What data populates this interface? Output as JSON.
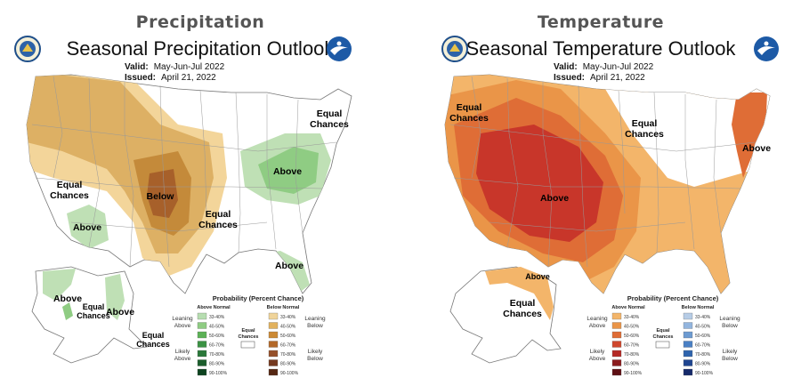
{
  "panels": [
    {
      "header": "Precipitation",
      "title": "Seasonal Precipitation Outlook",
      "valid_label": "Valid:",
      "valid_value": "May-Jun-Jul 2022",
      "issued_label": "Issued:",
      "issued_value": "April 21, 2022",
      "labels": {
        "below": "Below",
        "above_sw": "Above",
        "above_ne": "Above",
        "above_fl": "Above",
        "above_ak1": "Above",
        "above_ak2": "Above",
        "ec_ne_1": "Equal",
        "ec_ne_2": "Chances",
        "ec_w_1": "Equal",
        "ec_w_2": "Chances",
        "ec_s_1": "Equal",
        "ec_s_2": "Chances",
        "ec_ak_1": "Equal",
        "ec_ak_2": "Chances",
        "ec_ak2_1": "Equal",
        "ec_ak2_2": "Chances"
      },
      "legend": {
        "title": "Probability (Percent Chance)",
        "above_header": "Above Normal",
        "below_header": "Below Normal",
        "leaning_above": [
          "Leaning",
          "Above"
        ],
        "likely_above": [
          "Likely",
          "Above"
        ],
        "leaning_below": [
          "Leaning",
          "Below"
        ],
        "likely_below": [
          "Likely",
          "Below"
        ],
        "equal_chances": [
          "Equal",
          "Chances"
        ],
        "ranges": [
          "33-40%",
          "40-50%",
          "50-60%",
          "60-70%",
          "70-80%",
          "80-90%",
          "90-100%"
        ],
        "above_colors": [
          "#b6ddb0",
          "#8fcc83",
          "#5cb156",
          "#3b9244",
          "#2a7839",
          "#1c5e2c",
          "#0e4320"
        ],
        "below_colors": [
          "#f0d49a",
          "#e2b25e",
          "#cc8a35",
          "#b3692a",
          "#95502a",
          "#74391f",
          "#552713"
        ]
      }
    },
    {
      "header": "Temperature",
      "title": "Seasonal Temperature Outlook",
      "valid_label": "Valid:",
      "valid_value": "May-Jun-Jul 2022",
      "issued_label": "Issued:",
      "issued_value": "April 21, 2022",
      "labels": {
        "above_center": "Above",
        "above_ne": "Above",
        "above_ak": "Above",
        "ec_w_1": "Equal",
        "ec_w_2": "Chances",
        "ec_n_1": "Equal",
        "ec_n_2": "Chances",
        "ec_ak_1": "Equal",
        "ec_ak_2": "Chances"
      },
      "legend": {
        "title": "Probability (Percent Chance)",
        "above_header": "Above Normal",
        "below_header": "Below Normal",
        "leaning_above": [
          "Leaning",
          "Above"
        ],
        "likely_above": [
          "Likely",
          "Above"
        ],
        "leaning_below": [
          "Leaning",
          "Below"
        ],
        "likely_below": [
          "Likely",
          "Below"
        ],
        "equal_chances": [
          "Equal",
          "Chances"
        ],
        "ranges": [
          "33-40%",
          "40-50%",
          "50-60%",
          "60-70%",
          "70-80%",
          "80-90%",
          "90-100%"
        ],
        "above_colors": [
          "#f3b56a",
          "#ea9548",
          "#df6d36",
          "#cf472d",
          "#b52a26",
          "#8b1c1e",
          "#5e1015"
        ],
        "below_colors": [
          "#b6cce6",
          "#93b5de",
          "#6d9bd1",
          "#4a80c4",
          "#2e64ad",
          "#1f4590",
          "#162a6b"
        ]
      }
    }
  ],
  "colors": {
    "precip_below1": "#f3d59a",
    "precip_below2": "#ddb064",
    "precip_below3": "#c48a3a",
    "precip_below4": "#a7602a",
    "precip_above1": "#bfe0b5",
    "precip_above2": "#8fcc83",
    "temp_above1": "#f3b56a",
    "temp_above2": "#ea9548",
    "temp_above3": "#df6d36",
    "temp_above4": "#c8362a",
    "temp_above5": "#b52a26"
  }
}
